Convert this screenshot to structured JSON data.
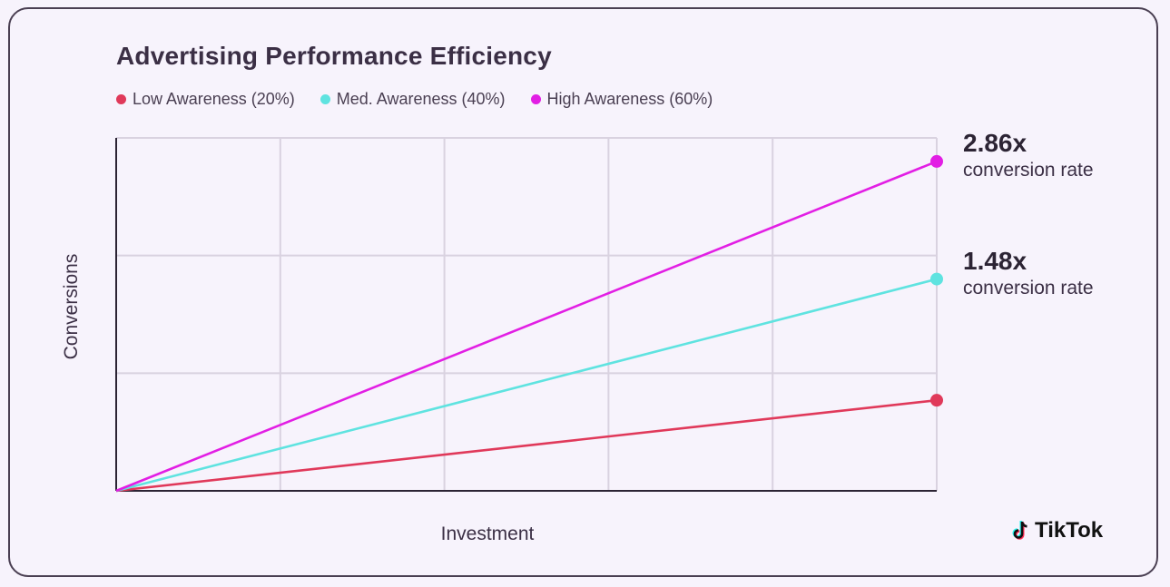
{
  "chart_data": {
    "type": "line",
    "title": "Advertising Performance Efficiency",
    "xlabel": "Investment",
    "ylabel": "Conversions",
    "xlim": [
      0,
      5
    ],
    "ylim": [
      0,
      3
    ],
    "grid": true,
    "legend_position": "top-left",
    "x": [
      0,
      5
    ],
    "series": [
      {
        "name": "Low Awareness (20%)",
        "color": "#e0395a",
        "values": [
          0,
          0.77
        ]
      },
      {
        "name": "Med. Awareness (40%)",
        "color": "#5fe3e0",
        "values": [
          0,
          1.8
        ]
      },
      {
        "name": "High Awareness (60%)",
        "color": "#e21ee4",
        "values": [
          0,
          2.8
        ]
      }
    ],
    "annotations": [
      {
        "value": "2.86x",
        "label": "conversion rate",
        "series": "High Awareness (60%)"
      },
      {
        "value": "1.48x",
        "label": "conversion rate",
        "series": "Med. Awareness (40%)"
      }
    ]
  },
  "brand": {
    "name": "TikTok"
  }
}
